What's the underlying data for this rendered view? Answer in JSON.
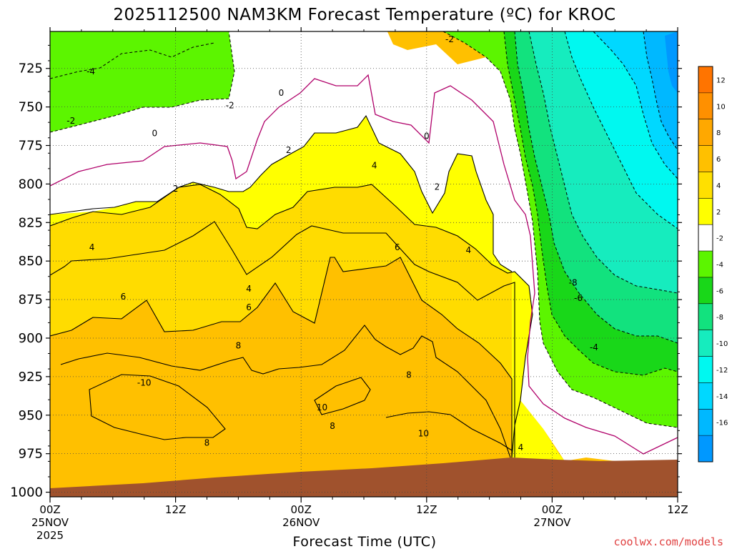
{
  "chart_data": {
    "type": "heatmap",
    "title": "2025112500 NAM3KM Forecast Temperature (ºC) for KROC",
    "xlabel": "Forecast Time (UTC)",
    "ylabel": "",
    "y_axis": {
      "ticks": [
        725,
        750,
        775,
        800,
        825,
        850,
        875,
        900,
        925,
        950,
        975,
        1000
      ],
      "range": [
        1003,
        701
      ],
      "direction": "pressure decreasing upward"
    },
    "x_axis": {
      "ticks": [
        {
          "hour": 0,
          "label": "00Z",
          "sub": "25NOV",
          "sub2": "2025"
        },
        {
          "hour": 12,
          "label": "12Z",
          "sub": "",
          "sub2": ""
        },
        {
          "hour": 24,
          "label": "00Z",
          "sub": "26NOV",
          "sub2": ""
        },
        {
          "hour": 36,
          "label": "12Z",
          "sub": "",
          "sub2": ""
        },
        {
          "hour": 48,
          "label": "00Z",
          "sub": "27NOV",
          "sub2": ""
        },
        {
          "hour": 60,
          "label": "12Z",
          "sub": "",
          "sub2": ""
        }
      ],
      "range": [
        0,
        60
      ]
    },
    "grid": true,
    "colorbar": {
      "position": "right",
      "levels": [
        12,
        10,
        8,
        6,
        4,
        2,
        -2,
        -4,
        -6,
        -8,
        -10,
        -12,
        -14,
        -16
      ],
      "colors": [
        "#ff7400",
        "#ff9000",
        "#ffa800",
        "#ffc000",
        "#ffe000",
        "#ffff00",
        "#ffffff",
        "#5cf500",
        "#19d719",
        "#12e27e",
        "#16ecbe",
        "#00f8f0",
        "#00d8ff",
        "#00b8ff",
        "#0098ff"
      ]
    },
    "contour_labels": [
      {
        "t": 3.9,
        "p": 727,
        "text": "-4"
      },
      {
        "t": 2.0,
        "p": 759,
        "text": "-2"
      },
      {
        "t": 17.2,
        "p": 749,
        "text": "-2"
      },
      {
        "t": 38.2,
        "p": 706,
        "text": "-2"
      },
      {
        "t": 10.0,
        "p": 767,
        "text": "0"
      },
      {
        "t": 22.1,
        "p": 741,
        "text": "0"
      },
      {
        "t": 36.0,
        "p": 769,
        "text": "0"
      },
      {
        "t": 22.8,
        "p": 778,
        "text": "2"
      },
      {
        "t": 12.0,
        "p": 803,
        "text": "2"
      },
      {
        "t": 37.0,
        "p": 802,
        "text": "2"
      },
      {
        "t": 31.0,
        "p": 788,
        "text": "4"
      },
      {
        "t": 4.0,
        "p": 841,
        "text": "4"
      },
      {
        "t": 19.0,
        "p": 868,
        "text": "4"
      },
      {
        "t": 40.0,
        "p": 843,
        "text": "4"
      },
      {
        "t": 33.2,
        "p": 841,
        "text": "6"
      },
      {
        "t": 7.0,
        "p": 873,
        "text": "6"
      },
      {
        "t": 19.0,
        "p": 880,
        "text": "6"
      },
      {
        "t": 50.0,
        "p": 864,
        "text": "-8"
      },
      {
        "t": 50.5,
        "p": 874,
        "text": "-6"
      },
      {
        "t": 52.0,
        "p": 906,
        "text": "-4"
      },
      {
        "t": 18.0,
        "p": 905,
        "text": "8"
      },
      {
        "t": 34.3,
        "p": 924,
        "text": "8"
      },
      {
        "t": 15.0,
        "p": 968,
        "text": "8"
      },
      {
        "t": 9.0,
        "p": 929,
        "text": "-10"
      },
      {
        "t": 26.0,
        "p": 945,
        "text": "10"
      },
      {
        "t": 27.0,
        "p": 957,
        "text": "8"
      },
      {
        "t": 35.7,
        "p": 962,
        "text": "10"
      },
      {
        "t": 45.0,
        "p": 971,
        "text": "4"
      }
    ]
  },
  "credit": "coolwx.com/models"
}
